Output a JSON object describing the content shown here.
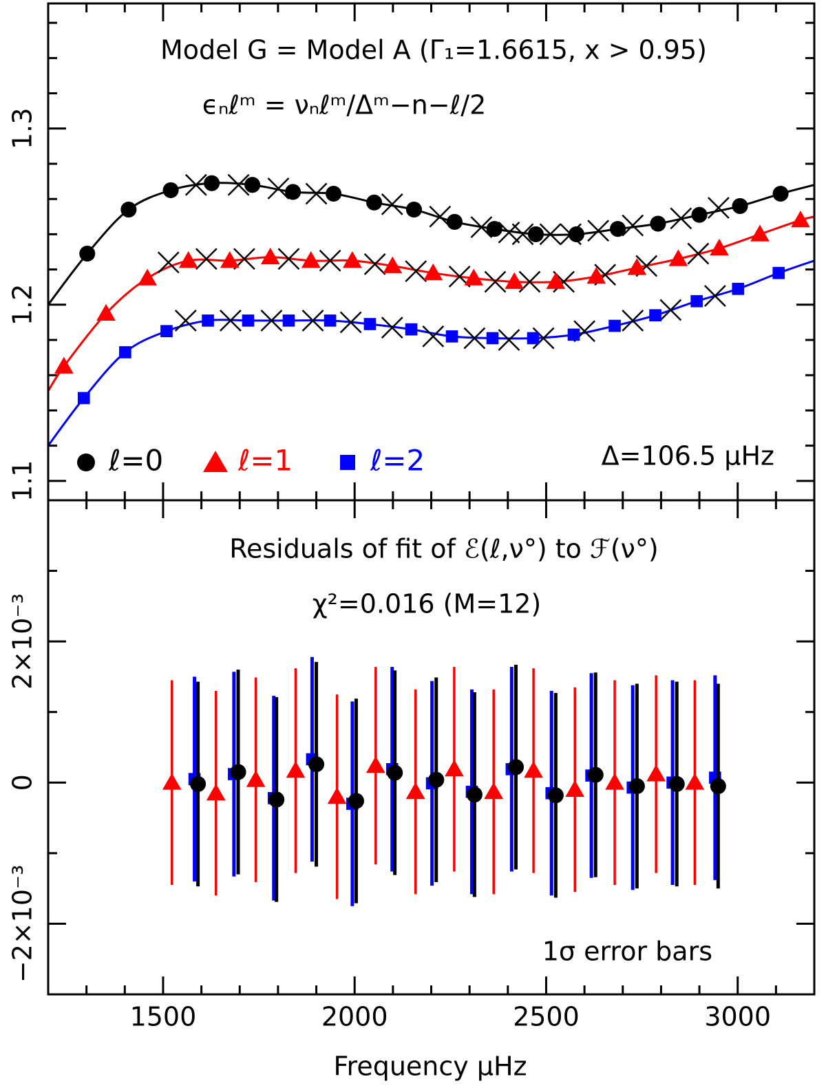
{
  "chart_data": [
    {
      "type": "line",
      "title": "Model G = Model A (Γ₁=1.6615, x > 0.95)",
      "subtitle": "ϵₙℓᵐ = νₙℓᵐ/Δᵐ−n−ℓ/2",
      "annotation": "Δ=106.5 μHz",
      "xlim": [
        1200,
        3200
      ],
      "xticks": [
        1500,
        2000,
        2500,
        3000
      ],
      "xminorticks": [
        1200,
        1300,
        1400,
        1600,
        1700,
        1800,
        1900,
        2100,
        2200,
        2300,
        2400,
        2600,
        2700,
        2800,
        2900,
        3100,
        3200
      ],
      "ylim": [
        1.089,
        1.371
      ],
      "yticks": [
        1.1,
        1.2,
        1.3
      ],
      "yminorticks": [
        1.12,
        1.14,
        1.16,
        1.18,
        1.22,
        1.24,
        1.26,
        1.28,
        1.32,
        1.34,
        1.36
      ],
      "legend": "bottom-left",
      "series": [
        {
          "name": "ℓ=0",
          "color": "#000000",
          "marker": "circle",
          "x": [
            1302,
            1410,
            1520,
            1627,
            1733,
            1839,
            1945,
            2051,
            2155,
            2261,
            2365,
            2473,
            2579,
            2687,
            2792,
            2900,
            3006,
            3112
          ],
          "values": [
            1.229,
            1.254,
            1.265,
            1.269,
            1.268,
            1.264,
            1.263,
            1.258,
            1.254,
            1.247,
            1.243,
            1.24,
            1.24,
            1.243,
            1.246,
            1.251,
            1.256,
            1.263
          ]
        },
        {
          "name": "ℓ=1",
          "color": "#ff0000",
          "marker": "triangle",
          "x": [
            1241,
            1351,
            1459,
            1566,
            1674,
            1780,
            1886,
            1994,
            2099,
            2205,
            2311,
            2417,
            2525,
            2631,
            2737,
            2845,
            2952,
            3058,
            3164
          ],
          "values": [
            1.165,
            1.195,
            1.215,
            1.225,
            1.225,
            1.227,
            1.225,
            1.225,
            1.222,
            1.218,
            1.215,
            1.213,
            1.213,
            1.216,
            1.221,
            1.226,
            1.232,
            1.24,
            1.248
          ]
        },
        {
          "name": "ℓ=2",
          "color": "#0000ff",
          "marker": "square",
          "x": [
            1293,
            1401,
            1509,
            1617,
            1722,
            1828,
            1936,
            2040,
            2148,
            2254,
            2360,
            2466,
            2572,
            2679,
            2785,
            2893,
            3001,
            3107
          ],
          "values": [
            1.147,
            1.173,
            1.185,
            1.191,
            1.191,
            1.191,
            1.191,
            1.189,
            1.186,
            1.182,
            1.181,
            1.181,
            1.183,
            1.188,
            1.194,
            1.202,
            1.209,
            1.218
          ]
        }
      ],
      "crosses": [
        {
          "color": "#000000",
          "x": [
            1586,
            1697,
            1801,
            1900,
            2098,
            2223,
            2331,
            2403,
            2439,
            2511,
            2564,
            2636,
            2726,
            2852,
            2950
          ],
          "values": [
            1.268,
            1.268,
            1.266,
            1.263,
            1.257,
            1.25,
            1.244,
            1.241,
            1.24,
            1.24,
            1.24,
            1.242,
            1.245,
            1.249,
            1.255
          ]
        },
        {
          "color": "#000000",
          "x": [
            1514,
            1613,
            1712,
            1828,
            1936,
            2053,
            2160,
            2274,
            2367,
            2457,
            2546,
            2654,
            2762,
            2897
          ],
          "values": [
            1.224,
            1.226,
            1.226,
            1.226,
            1.225,
            1.223,
            1.219,
            1.216,
            1.213,
            1.213,
            1.213,
            1.217,
            1.222,
            1.229
          ]
        },
        {
          "color": "#000000",
          "x": [
            1559,
            1676,
            1783,
            1891,
            1990,
            2098,
            2205,
            2313,
            2403,
            2493,
            2600,
            2726,
            2825,
            2941
          ],
          "values": [
            1.191,
            1.191,
            1.191,
            1.191,
            1.19,
            1.187,
            1.182,
            1.181,
            1.18,
            1.181,
            1.185,
            1.191,
            1.197,
            1.205
          ]
        }
      ],
      "curves": [
        {
          "color": "#000000",
          "x": [
            1200,
            1302,
            1410,
            1520,
            1627,
            1733,
            1839,
            1945,
            2051,
            2155,
            2261,
            2365,
            2473,
            2579,
            2687,
            2792,
            2900,
            3006,
            3112,
            3200
          ],
          "values": [
            1.2,
            1.229,
            1.254,
            1.265,
            1.269,
            1.268,
            1.264,
            1.263,
            1.258,
            1.254,
            1.247,
            1.243,
            1.24,
            1.24,
            1.243,
            1.246,
            1.251,
            1.256,
            1.263,
            1.268
          ]
        },
        {
          "color": "#ff0000",
          "x": [
            1200,
            1241,
            1351,
            1459,
            1566,
            1674,
            1780,
            1886,
            1994,
            2099,
            2205,
            2311,
            2417,
            2525,
            2631,
            2737,
            2845,
            2952,
            3058,
            3164,
            3200
          ],
          "values": [
            1.151,
            1.165,
            1.195,
            1.215,
            1.225,
            1.225,
            1.227,
            1.225,
            1.225,
            1.222,
            1.218,
            1.215,
            1.213,
            1.213,
            1.216,
            1.221,
            1.226,
            1.232,
            1.24,
            1.248,
            1.25
          ]
        },
        {
          "color": "#0000ff",
          "x": [
            1200,
            1293,
            1401,
            1509,
            1617,
            1722,
            1828,
            1936,
            2040,
            2148,
            2254,
            2360,
            2466,
            2572,
            2679,
            2785,
            2893,
            3001,
            3107,
            3200
          ],
          "values": [
            1.12,
            1.147,
            1.173,
            1.185,
            1.191,
            1.191,
            1.191,
            1.191,
            1.189,
            1.186,
            1.182,
            1.181,
            1.181,
            1.183,
            1.188,
            1.194,
            1.202,
            1.209,
            1.218,
            1.225
          ]
        }
      ]
    },
    {
      "type": "errorbar",
      "title": "Residuals of fit of ℰ(ℓ,ν°) to ℱ(ν°)",
      "subtitle": "χ²=0.016 (M=12)",
      "annotation": "1σ error bars",
      "xlabel": "Frequency μHz",
      "xlim": [
        1200,
        3200
      ],
      "xticks": [
        1500,
        2000,
        2500,
        3000
      ],
      "xminorticks": [
        1200,
        1300,
        1400,
        1600,
        1700,
        1800,
        1900,
        2100,
        2200,
        2300,
        2400,
        2600,
        2700,
        2800,
        2900,
        3100,
        3200
      ],
      "ylim": [
        -0.003,
        0.004
      ],
      "yticks": [
        {
          "value": -0.002,
          "label": "−2×10⁻³"
        },
        0,
        {
          "value": 0.002,
          "label": "2×10⁻³"
        }
      ],
      "yminorticks": [
        -0.003,
        -0.001,
        0.001,
        0.003
      ],
      "series": [
        {
          "color": "#ff0000",
          "marker": "triangle",
          "x": [
            1523,
            1638,
            1742,
            1846,
            1954,
            2055,
            2159,
            2260,
            2363,
            2467,
            2575,
            2679,
            2787,
            2888
          ],
          "values": [
            0,
            -0.00015,
            4e-05,
            0.00017,
            -0.0002,
            0.00024,
            -0.00013,
            0.00019,
            -0.00013,
            0.00017,
            -0.0001,
            0,
            0.00012,
            0
          ],
          "errors": [
            0.00145,
            0.00145,
            0.00145,
            0.00145,
            0.00145,
            0.0014,
            0.00145,
            0.00145,
            0.00145,
            0.00145,
            0.00145,
            0.00145,
            0.0014,
            0.00145
          ]
        },
        {
          "color": "#0000ff",
          "marker": "square",
          "x": [
            1582,
            1685,
            1789,
            1889,
            1994,
            2098,
            2202,
            2306,
            2410,
            2514,
            2618,
            2726,
            2830,
            2941
          ],
          "values": [
            5e-05,
            0.00012,
            -0.00022,
            0.00033,
            -0.0003,
            0.00019,
            -1e-05,
            -0.00013,
            0.00019,
            -0.00015,
            0.0001,
            -7e-05,
            0,
            7e-05
          ],
          "errors": [
            0.00145,
            0.00145,
            0.00145,
            0.00145,
            0.00145,
            0.00145,
            0.00145,
            0.00145,
            0.00145,
            0.00145,
            0.00145,
            0.00145,
            0.00145,
            0.00145
          ]
        },
        {
          "color": "#000000",
          "marker": "circle",
          "x": [
            1591,
            1696,
            1796,
            1900,
            2004,
            2105,
            2213,
            2313,
            2421,
            2525,
            2629,
            2737,
            2841,
            2949
          ],
          "values": [
            -2e-05,
            0.00015,
            -0.00024,
            0.00026,
            -0.00026,
            0.00014,
            4e-05,
            -0.00017,
            0.00022,
            -0.00018,
            0.00011,
            -5e-05,
            -2e-05,
            -5e-05
          ],
          "errors": [
            0.00145,
            0.00145,
            0.00145,
            0.00145,
            0.00145,
            0.00145,
            0.00145,
            0.00145,
            0.00145,
            0.00145,
            0.00145,
            0.00145,
            0.00145,
            0.00145
          ]
        }
      ]
    }
  ]
}
